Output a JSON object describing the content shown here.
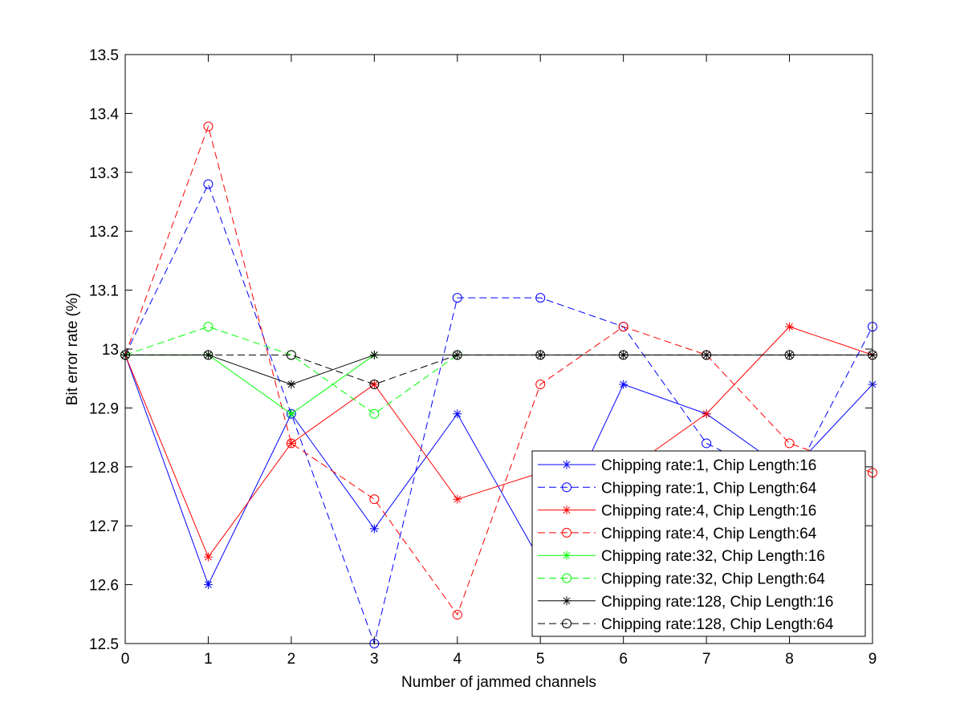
{
  "chart_data": {
    "type": "line",
    "title": "",
    "xlabel": "Number of jammed channels",
    "ylabel": "Bit error rate (%)",
    "xlim": [
      0,
      9
    ],
    "ylim": [
      12.5,
      13.5
    ],
    "xticks": [
      0,
      1,
      2,
      3,
      4,
      5,
      6,
      7,
      8,
      9
    ],
    "yticks": [
      12.5,
      12.6,
      12.7,
      12.8,
      12.9,
      13,
      13.1,
      13.2,
      13.3,
      13.4,
      13.5
    ],
    "x_tick_labels": [
      "0",
      "1",
      "2",
      "3",
      "4",
      "5",
      "6",
      "7",
      "8",
      "9"
    ],
    "y_tick_labels": [
      "12.5",
      "12.6",
      "12.7",
      "12.8",
      "12.9",
      "13",
      "13.1",
      "13.2",
      "13.3",
      "13.4",
      "13.5"
    ],
    "grid": false,
    "legend_position": "bottom-right",
    "x": [
      0,
      1,
      2,
      3,
      4,
      5,
      6,
      7,
      8,
      9
    ],
    "series": [
      {
        "name": "Chipping rate:1, Chip Length:16",
        "color": "#0000ff",
        "dash": "solid",
        "marker": "star",
        "values": [
          12.99,
          12.6,
          12.89,
          12.695,
          12.89,
          12.64,
          12.94,
          12.89,
          12.79,
          12.94
        ]
      },
      {
        "name": "Chipping rate:1, Chip Length:64",
        "color": "#0000ff",
        "dash": "dashed",
        "marker": "circle",
        "values": [
          12.99,
          13.28,
          12.89,
          12.5,
          13.087,
          13.087,
          13.038,
          12.84,
          12.77,
          13.038
        ]
      },
      {
        "name": "Chipping rate:4, Chip Length:16",
        "color": "#ff0000",
        "dash": "solid",
        "marker": "star",
        "values": [
          12.99,
          12.647,
          12.84,
          12.94,
          12.745,
          12.79,
          12.79,
          12.89,
          13.038,
          12.99
        ]
      },
      {
        "name": "Chipping rate:4, Chip Length:64",
        "color": "#ff0000",
        "dash": "dashed",
        "marker": "circle",
        "values": [
          12.99,
          13.378,
          12.84,
          12.745,
          12.549,
          12.94,
          13.038,
          12.99,
          12.84,
          12.79
        ]
      },
      {
        "name": "Chipping rate:32, Chip Length:16",
        "color": "#00ff00",
        "dash": "solid",
        "marker": "star",
        "values": [
          12.99,
          12.99,
          12.89,
          12.99,
          null,
          null,
          null,
          null,
          null,
          null
        ]
      },
      {
        "name": "Chipping rate:32, Chip Length:64",
        "color": "#00ff00",
        "dash": "dashed",
        "marker": "circle",
        "values": [
          12.99,
          13.038,
          12.99,
          12.89,
          12.99,
          null,
          null,
          null,
          null,
          null
        ]
      },
      {
        "name": "Chipping rate:128, Chip Length:16",
        "color": "#000000",
        "dash": "solid",
        "marker": "star",
        "values": [
          12.99,
          12.99,
          12.94,
          12.99,
          12.99,
          12.99,
          12.99,
          12.99,
          12.99,
          12.99
        ]
      },
      {
        "name": "Chipping rate:128, Chip Length:64",
        "color": "#000000",
        "dash": "dashed",
        "marker": "circle",
        "values": [
          12.99,
          12.99,
          12.99,
          12.94,
          12.99,
          12.99,
          12.99,
          12.99,
          12.99,
          12.99
        ]
      }
    ]
  }
}
